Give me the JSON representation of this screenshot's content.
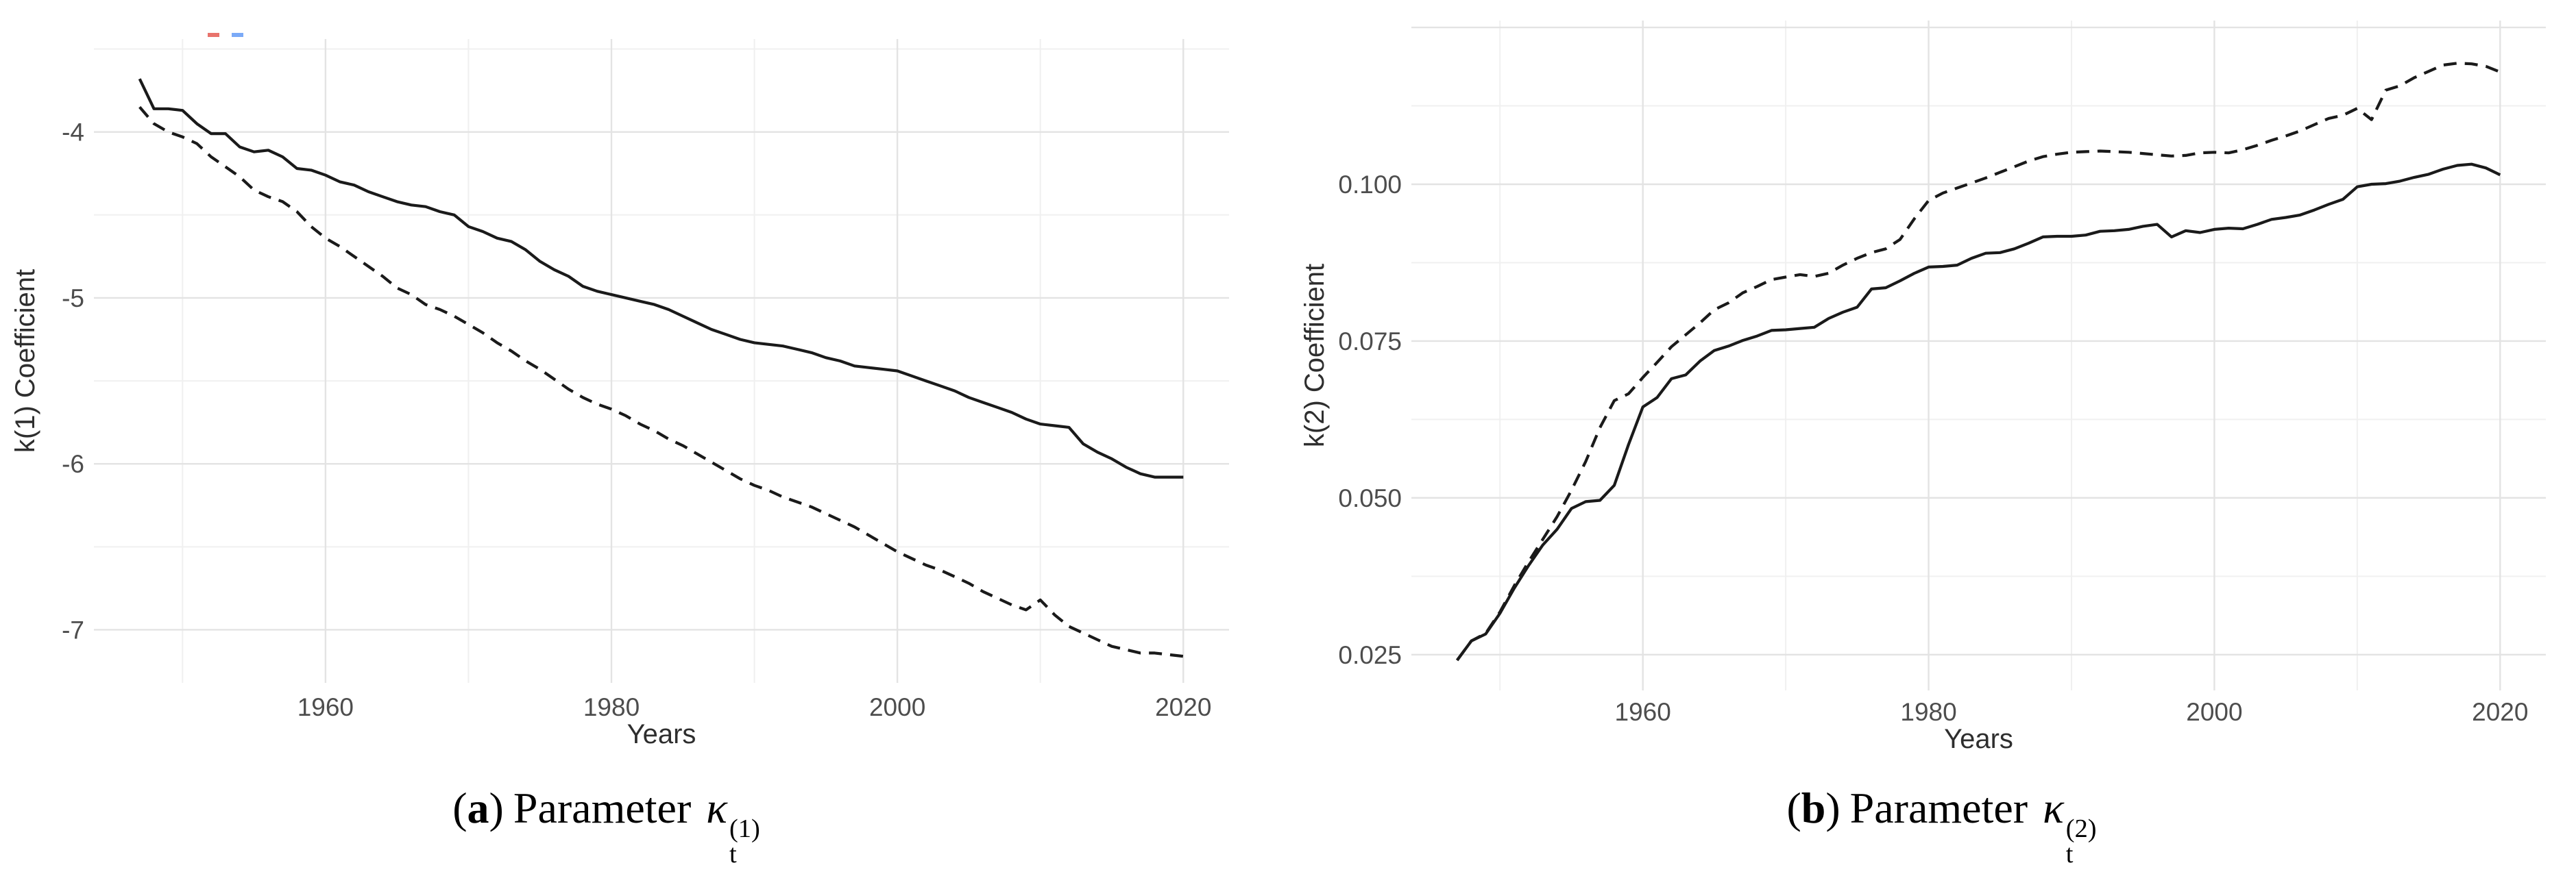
{
  "captions": [
    {
      "open": "(",
      "letter": "a",
      "close": ")",
      "word": "Parameter",
      "symbol": "κ",
      "sup": "(1)",
      "sub": "t"
    },
    {
      "open": "(",
      "letter": "b",
      "close": ")",
      "word": "Parameter",
      "symbol": "κ",
      "sup": "(2)",
      "sub": "t"
    }
  ],
  "colors": {
    "background": "#ffffff",
    "line": "#1a1a1a",
    "grid_major": "#e3e3e3",
    "grid_minor": "#f0f0f0",
    "tick_label": "#4d4d4d",
    "axis_title": "#2e2e2e",
    "stray_mark_red": "#e8736c",
    "stray_mark_blue": "#7baaf7"
  },
  "chart_data": [
    {
      "id": "a",
      "type": "line",
      "title": "",
      "xlabel": "Years",
      "ylabel": "k(1) Coefficient",
      "xlim": [
        1943.8,
        2023.2
      ],
      "ylim": [
        -7.32,
        -3.44
      ],
      "x_ticks": [
        1960,
        1980,
        2000,
        2020
      ],
      "x_minor_ticks": [
        1950,
        1970,
        1990,
        2010
      ],
      "y_ticks": [
        -4,
        -5,
        -6,
        -7
      ],
      "y_tick_labels": [
        "-4",
        "-5",
        "-6",
        "-7"
      ],
      "extra_gridlines": [],
      "grid": "major+minor",
      "legend_position": "none",
      "stray_legend_marks": [
        "#e8736c",
        "#7baaf7"
      ],
      "x": [
        1947,
        1948,
        1949,
        1950,
        1951,
        1952,
        1953,
        1954,
        1955,
        1956,
        1957,
        1958,
        1959,
        1960,
        1961,
        1962,
        1963,
        1964,
        1965,
        1966,
        1967,
        1968,
        1969,
        1970,
        1971,
        1972,
        1973,
        1974,
        1975,
        1976,
        1977,
        1978,
        1979,
        1980,
        1981,
        1982,
        1983,
        1984,
        1985,
        1986,
        1987,
        1988,
        1989,
        1990,
        1991,
        1992,
        1993,
        1994,
        1995,
        1996,
        1997,
        1998,
        1999,
        2000,
        2001,
        2002,
        2003,
        2004,
        2005,
        2006,
        2007,
        2008,
        2009,
        2010,
        2011,
        2012,
        2013,
        2014,
        2015,
        2016,
        2017,
        2018,
        2019,
        2020
      ],
      "series": [
        {
          "name": "solid",
          "line_style": "solid",
          "color": "#1a1a1a",
          "values": [
            -3.68,
            -3.86,
            -3.86,
            -3.87,
            -3.95,
            -4.01,
            -4.01,
            -4.09,
            -4.12,
            -4.11,
            -4.15,
            -4.22,
            -4.23,
            -4.26,
            -4.3,
            -4.32,
            -4.36,
            -4.39,
            -4.42,
            -4.44,
            -4.45,
            -4.48,
            -4.5,
            -4.57,
            -4.6,
            -4.64,
            -4.66,
            -4.71,
            -4.78,
            -4.83,
            -4.87,
            -4.93,
            -4.96,
            -4.98,
            -5.0,
            -5.02,
            -5.04,
            -5.07,
            -5.11,
            -5.15,
            -5.19,
            -5.22,
            -5.25,
            -5.27,
            -5.28,
            -5.29,
            -5.31,
            -5.33,
            -5.36,
            -5.38,
            -5.41,
            -5.42,
            -5.43,
            -5.44,
            -5.47,
            -5.5,
            -5.53,
            -5.56,
            -5.6,
            -5.63,
            -5.66,
            -5.69,
            -5.73,
            -5.76,
            -5.77,
            -5.78,
            -5.88,
            -5.93,
            -5.97,
            -6.02,
            -6.06,
            -6.08,
            -6.08,
            -6.08
          ]
        },
        {
          "name": "dashed",
          "line_style": "dashed",
          "color": "#1a1a1a",
          "values": [
            -3.85,
            -3.95,
            -4.0,
            -4.03,
            -4.07,
            -4.15,
            -4.21,
            -4.27,
            -4.35,
            -4.39,
            -4.42,
            -4.48,
            -4.57,
            -4.64,
            -4.69,
            -4.75,
            -4.81,
            -4.87,
            -4.94,
            -4.98,
            -5.04,
            -5.07,
            -5.11,
            -5.16,
            -5.21,
            -5.27,
            -5.32,
            -5.38,
            -5.43,
            -5.49,
            -5.55,
            -5.6,
            -5.64,
            -5.67,
            -5.71,
            -5.76,
            -5.8,
            -5.85,
            -5.89,
            -5.94,
            -5.99,
            -6.04,
            -6.09,
            -6.13,
            -6.16,
            -6.2,
            -6.23,
            -6.26,
            -6.3,
            -6.34,
            -6.38,
            -6.43,
            -6.48,
            -6.53,
            -6.57,
            -6.61,
            -6.64,
            -6.68,
            -6.72,
            -6.77,
            -6.81,
            -6.85,
            -6.88,
            -6.82,
            -6.91,
            -6.98,
            -7.02,
            -7.06,
            -7.1,
            -7.12,
            -7.14,
            -7.14,
            -7.15,
            -7.16
          ]
        }
      ]
    },
    {
      "id": "b",
      "type": "line",
      "title": "",
      "xlabel": "Years",
      "ylabel": "k(2) Coefficient",
      "xlim": [
        1943.8,
        2023.2
      ],
      "ylim": [
        0.0193,
        0.1261
      ],
      "x_ticks": [
        1960,
        1980,
        2000,
        2020
      ],
      "x_minor_ticks": [
        1950,
        1970,
        1990,
        2010
      ],
      "y_ticks": [
        0.1,
        0.075,
        0.05,
        0.025
      ],
      "y_tick_labels": [
        "0.100",
        "0.075",
        "0.050",
        "0.025"
      ],
      "extra_gridlines": [
        0.125
      ],
      "grid": "major+minor",
      "legend_position": "none",
      "stray_legend_marks": [],
      "x": [
        1947,
        1948,
        1949,
        1950,
        1951,
        1952,
        1953,
        1954,
        1955,
        1956,
        1957,
        1958,
        1959,
        1960,
        1961,
        1962,
        1963,
        1964,
        1965,
        1966,
        1967,
        1968,
        1969,
        1970,
        1971,
        1972,
        1973,
        1974,
        1975,
        1976,
        1977,
        1978,
        1979,
        1980,
        1981,
        1982,
        1983,
        1984,
        1985,
        1986,
        1987,
        1988,
        1989,
        1990,
        1991,
        1992,
        1993,
        1994,
        1995,
        1996,
        1997,
        1998,
        1999,
        2000,
        2001,
        2002,
        2003,
        2004,
        2005,
        2006,
        2007,
        2008,
        2009,
        2010,
        2011,
        2012,
        2013,
        2014,
        2015,
        2016,
        2017,
        2018,
        2019,
        2020
      ],
      "series": [
        {
          "name": "solid",
          "line_style": "solid",
          "color": "#1a1a1a",
          "values": [
            0.0241,
            0.0272,
            0.0283,
            0.0316,
            0.0356,
            0.0392,
            0.0425,
            0.045,
            0.0483,
            0.0494,
            0.0496,
            0.052,
            0.0585,
            0.0645,
            0.066,
            0.069,
            0.0696,
            0.0718,
            0.0735,
            0.0742,
            0.0751,
            0.0758,
            0.0767,
            0.0768,
            0.077,
            0.0772,
            0.0786,
            0.0796,
            0.0804,
            0.0833,
            0.0835,
            0.0846,
            0.0858,
            0.0868,
            0.0869,
            0.0871,
            0.0882,
            0.089,
            0.0891,
            0.0897,
            0.0906,
            0.0916,
            0.0917,
            0.0917,
            0.0919,
            0.0925,
            0.0926,
            0.0928,
            0.0933,
            0.0936,
            0.0916,
            0.0926,
            0.0923,
            0.0928,
            0.093,
            0.0929,
            0.0936,
            0.0944,
            0.0947,
            0.0951,
            0.0959,
            0.0968,
            0.0976,
            0.0996,
            0.1,
            0.1001,
            0.1005,
            0.1011,
            0.1016,
            0.1024,
            0.103,
            0.1032,
            0.1026,
            0.1015
          ]
        },
        {
          "name": "dashed",
          "line_style": "dashed",
          "color": "#1a1a1a",
          "values": [
            0.0241,
            0.0272,
            0.0284,
            0.0318,
            0.036,
            0.0398,
            0.0434,
            0.047,
            0.0512,
            0.0558,
            0.0612,
            0.0655,
            0.0666,
            0.0692,
            0.0716,
            0.0741,
            0.076,
            0.0779,
            0.08,
            0.0811,
            0.0827,
            0.0837,
            0.0848,
            0.0852,
            0.0856,
            0.0853,
            0.0858,
            0.0871,
            0.0882,
            0.0891,
            0.0897,
            0.0912,
            0.0945,
            0.0974,
            0.0986,
            0.0994,
            0.1002,
            0.101,
            0.1019,
            0.1028,
            0.1037,
            0.1044,
            0.1048,
            0.1051,
            0.1052,
            0.1053,
            0.1052,
            0.1051,
            0.1049,
            0.1047,
            0.1045,
            0.1046,
            0.105,
            0.1051,
            0.105,
            0.1055,
            0.1062,
            0.107,
            0.1077,
            0.1085,
            0.1095,
            0.1105,
            0.111,
            0.1121,
            0.1103,
            0.115,
            0.1157,
            0.117,
            0.118,
            0.119,
            0.1193,
            0.1192,
            0.1188,
            0.1179
          ]
        }
      ]
    }
  ]
}
